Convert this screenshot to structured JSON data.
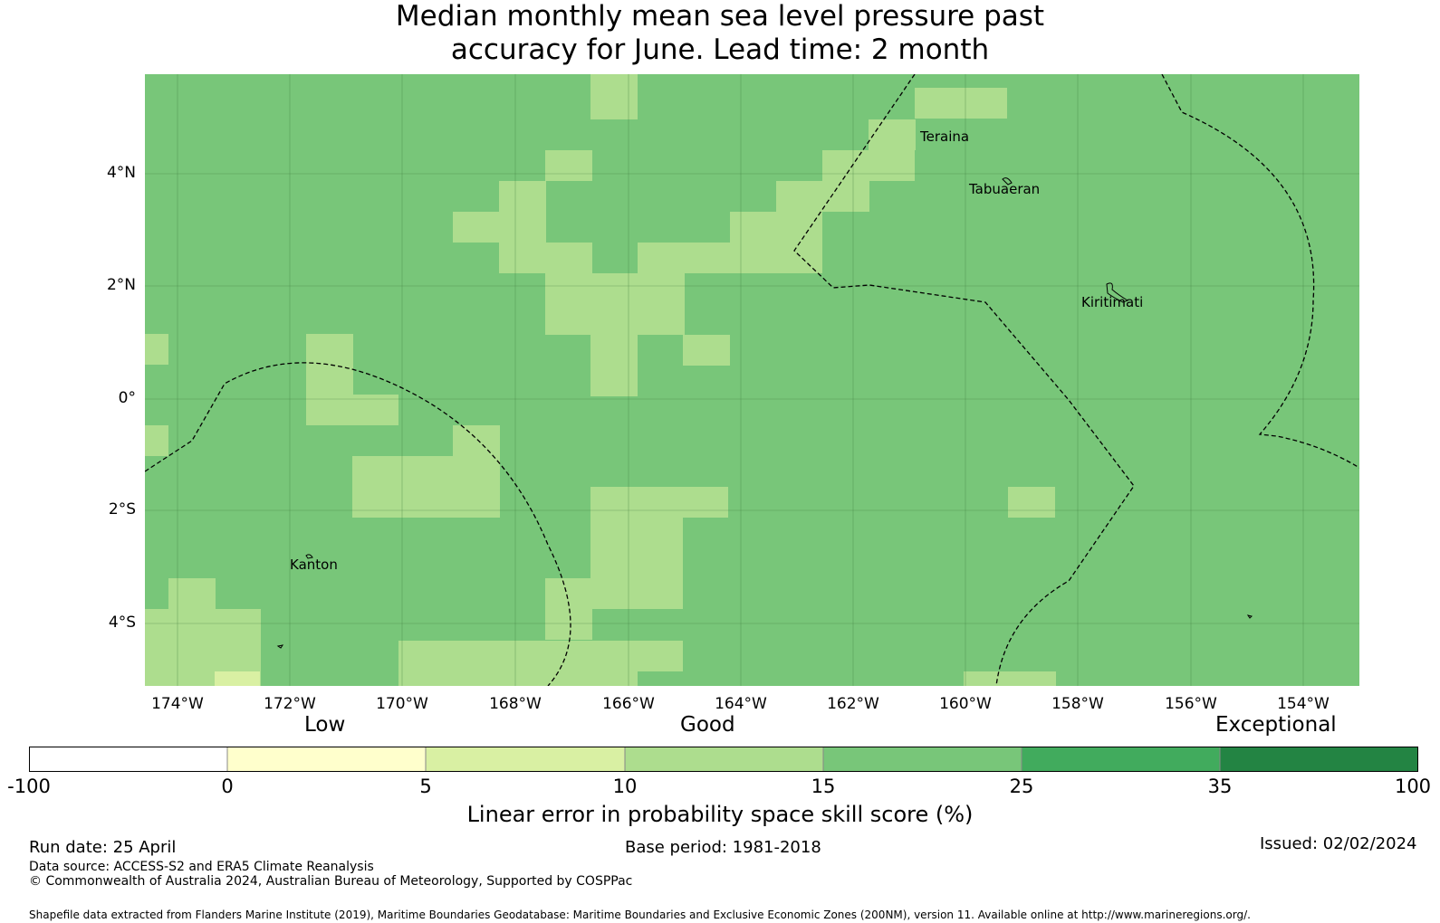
{
  "title_line1": "Median monthly mean sea level pressure past",
  "title_line2": "accuracy for June. Lead time: 2 month",
  "colors": {
    "base": "#78c679",
    "light": "#addd8e",
    "pale": "#d9f0a3",
    "yellow": "#ffffcc",
    "green25": "#41ab5d",
    "green35": "#238443",
    "white": "#ffffff"
  },
  "map": {
    "lat_ticks": [
      "4°N",
      "2°N",
      "0°",
      "2°S",
      "4°S"
    ],
    "lon_ticks": [
      "174°W",
      "172°W",
      "170°W",
      "168°W",
      "166°W",
      "164°W",
      "162°W",
      "160°W",
      "158°W",
      "156°W",
      "154°W"
    ],
    "places": {
      "teraina": "Teraina",
      "tabuaeran": "Tabuaeran",
      "kiritimati": "Kiritimati",
      "kanton": "Kanton"
    }
  },
  "colorbar": {
    "categories": {
      "low": "Low",
      "good": "Good",
      "exceptional": "Exceptional"
    },
    "ticks": [
      "-100",
      "0",
      "5",
      "10",
      "15",
      "25",
      "35",
      "100"
    ],
    "label": "Linear error in probability space skill score (%)"
  },
  "footer": {
    "run_date": "Run date: 25 April",
    "base_period": "Base period: 1981-2018",
    "issued": "Issued: 02/02/2024",
    "data_source": "Data source: ACCESS-S2 and ERA5 Climate Reanalysis",
    "copyright": "© Commonwealth of Australia 2024, Australian Bureau of Meteorology, Supported by COSPPac",
    "shapefile": "Shapefile data extracted from Flanders Marine Institute (2019), Maritime Boundaries Geodatabase: Maritime Boundaries and Exclusive Economic Zones (200NM), version 11. Available online at http://www.marineregions.org/."
  }
}
